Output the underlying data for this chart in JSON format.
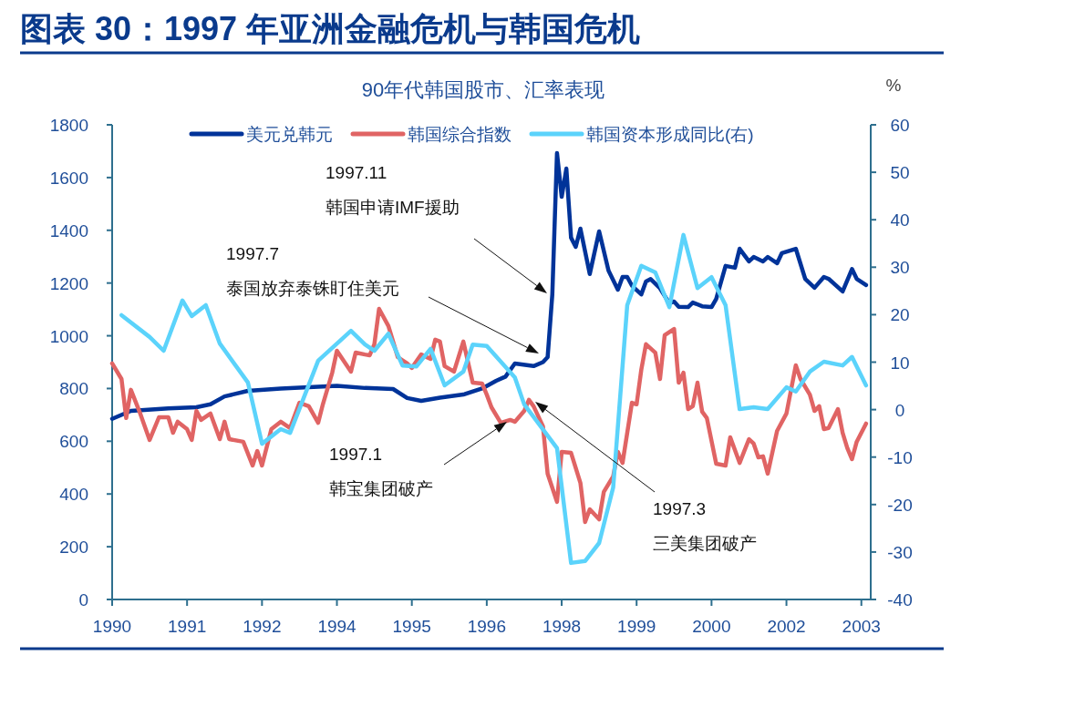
{
  "chart_data": {
    "type": "line",
    "title": "图表 30：1997 年亚洲金融危机与韩国危机",
    "subtitle": "90年代韩国股市、汇率表现",
    "y2label": "%",
    "xlim": [
      "1990-01",
      "2003-07"
    ],
    "xticks": [
      {
        "value": "1990-01",
        "label": "1990"
      },
      {
        "value": "1991-05",
        "label": "1991"
      },
      {
        "value": "1992-09",
        "label": "1992"
      },
      {
        "value": "1994-01",
        "label": "1994"
      },
      {
        "value": "1995-05",
        "label": "1995"
      },
      {
        "value": "1996-09",
        "label": "1996"
      },
      {
        "value": "1998-01",
        "label": "1998"
      },
      {
        "value": "1999-05",
        "label": "1999"
      },
      {
        "value": "2000-09",
        "label": "2000"
      },
      {
        "value": "2002-01",
        "label": "2002"
      },
      {
        "value": "2003-05",
        "label": "2003"
      }
    ],
    "ylim": [
      0,
      1800
    ],
    "yticks": [
      0,
      200,
      400,
      600,
      800,
      1000,
      1200,
      1400,
      1600,
      1800
    ],
    "y2lim": [
      -40,
      60
    ],
    "y2ticks": [
      -40,
      -30,
      -20,
      -10,
      0,
      10,
      20,
      30,
      40,
      50,
      60
    ],
    "grid": false,
    "legend": "top",
    "line_style": "solid",
    "marker": "none",
    "series": [
      {
        "name": "美元兑韩元",
        "color": "#003399",
        "x": [
          "1990-01",
          "1990-05",
          "1991-01",
          "1991-07",
          "1991-10",
          "1992-01",
          "1992-06",
          "1993-01",
          "1993-07",
          "1994-01",
          "1994-07",
          "1995-01",
          "1995-04",
          "1995-07",
          "1995-11",
          "1996-04",
          "1996-08",
          "1996-11",
          "1997-01",
          "1997-03",
          "1997-07",
          "1997-09",
          "1997-10",
          "1997-11",
          "1997-12",
          "1998-01",
          "1998-02",
          "1998-03",
          "1998-04",
          "1998-05",
          "1998-07",
          "1998-09",
          "1998-11",
          "1999-01",
          "1999-02",
          "1999-03",
          "1999-04",
          "1999-06",
          "1999-07",
          "1999-08",
          "1999-10",
          "1999-12",
          "2000-01",
          "2000-02",
          "2000-04",
          "2000-05",
          "2000-07",
          "2000-09",
          "2000-10",
          "2000-12",
          "2001-02",
          "2001-03",
          "2001-05",
          "2001-06",
          "2001-08",
          "2001-09",
          "2001-11",
          "2001-12",
          "2002-03",
          "2002-05",
          "2002-07",
          "2002-09",
          "2002-10",
          "2003-01",
          "2003-03",
          "2003-04",
          "2003-06"
        ],
        "values": [
          685,
          715,
          725,
          729,
          740,
          770,
          791,
          800,
          805,
          810,
          802,
          798,
          764,
          753,
          765,
          777,
          800,
          829,
          845,
          895,
          885,
          900,
          919,
          1157,
          1693,
          1527,
          1634,
          1372,
          1337,
          1406,
          1234,
          1396,
          1247,
          1175,
          1223,
          1223,
          1190,
          1157,
          1206,
          1215,
          1180,
          1123,
          1130,
          1110,
          1109,
          1126,
          1112,
          1109,
          1140,
          1265,
          1258,
          1330,
          1282,
          1299,
          1282,
          1299,
          1275,
          1313,
          1330,
          1216,
          1182,
          1223,
          1216,
          1168,
          1253,
          1216,
          1192
        ]
      },
      {
        "name": "韩国综合指数",
        "color": "#e06464",
        "x": [
          "1990-01",
          "1990-03",
          "1990-04",
          "1990-05",
          "1990-07",
          "1990-09",
          "1990-11",
          "1991-01",
          "1991-02",
          "1991-03",
          "1991-05",
          "1991-06",
          "1991-07",
          "1991-08",
          "1991-10",
          "1991-12",
          "1992-01",
          "1992-02",
          "1992-05",
          "1992-07",
          "1992-08",
          "1992-09",
          "1992-11",
          "1993-01",
          "1993-03",
          "1993-05",
          "1993-07",
          "1993-09",
          "1993-10",
          "1993-12",
          "1994-01",
          "1994-04",
          "1994-05",
          "1994-07",
          "1994-08",
          "1994-09",
          "1994-10",
          "1994-12",
          "1995-02",
          "1995-04",
          "1995-05",
          "1995-07",
          "1995-09",
          "1995-10",
          "1995-11",
          "1995-12",
          "1996-02",
          "1996-04",
          "1996-06",
          "1996-08",
          "1996-09",
          "1996-10",
          "1996-12",
          "1997-02",
          "1997-03",
          "1997-05",
          "1997-06",
          "1997-07",
          "1997-09",
          "1997-10",
          "1997-12",
          "1998-01",
          "1998-03",
          "1998-05",
          "1998-06",
          "1998-07",
          "1998-09",
          "1998-10",
          "1998-12",
          "1999-01",
          "1999-02",
          "1999-04",
          "1999-05",
          "1999-06",
          "1999-07",
          "1999-09",
          "1999-10",
          "1999-11",
          "2000-01",
          "2000-02",
          "2000-03",
          "2000-04",
          "2000-05",
          "2000-06",
          "2000-07",
          "2000-08",
          "2000-10",
          "2000-12",
          "2001-01",
          "2001-03",
          "2001-05",
          "2001-06",
          "2001-07",
          "2001-08",
          "2001-09",
          "2001-11",
          "2002-01",
          "2002-03",
          "2002-04",
          "2002-06",
          "2002-07",
          "2002-08",
          "2002-09",
          "2002-10",
          "2002-12",
          "2003-01",
          "2003-02",
          "2003-03",
          "2003-04",
          "2003-06"
        ],
        "values": [
          895,
          836,
          688,
          795,
          705,
          605,
          691,
          691,
          632,
          674,
          646,
          605,
          715,
          681,
          705,
          608,
          674,
          608,
          598,
          508,
          563,
          508,
          646,
          674,
          650,
          746,
          733,
          670,
          740,
          860,
          943,
          864,
          936,
          929,
          926,
          968,
          1102,
          1037,
          919,
          895,
          878,
          929,
          912,
          985,
          978,
          885,
          864,
          978,
          822,
          819,
          777,
          729,
          670,
          681,
          674,
          715,
          757,
          733,
          657,
          477,
          370,
          560,
          556,
          442,
          294,
          342,
          304,
          408,
          467,
          560,
          518,
          746,
          740,
          871,
          968,
          936,
          836,
          1002,
          1026,
          822,
          860,
          722,
          733,
          822,
          712,
          688,
          515,
          508,
          615,
          518,
          608,
          591,
          539,
          543,
          477,
          639,
          705,
          888,
          836,
          777,
          715,
          733,
          646,
          650,
          722,
          632,
          574,
          532,
          598,
          667
        ]
      },
      {
        "name": "韩国资本形成同比(右)",
        "color": "#5bd3fb",
        "axis": "y2",
        "x": [
          "1990-03",
          "1990-09",
          "1990-12",
          "1991-04",
          "1991-06",
          "1991-09",
          "1991-12",
          "1992-06",
          "1992-09",
          "1993-01",
          "1993-03",
          "1993-09",
          "1994-04",
          "1994-07",
          "1994-09",
          "1994-12",
          "1995-03",
          "1995-06",
          "1995-09",
          "1995-12",
          "1996-04",
          "1996-06",
          "1996-09",
          "1997-03",
          "1997-05",
          "1997-12",
          "1998-03",
          "1998-06",
          "1998-09",
          "1998-12",
          "1999-03",
          "1999-06",
          "1999-09",
          "1999-12",
          "2000-03",
          "2000-06",
          "2000-09",
          "2000-12",
          "2001-03",
          "2001-06",
          "2001-09",
          "2002-01",
          "2002-03",
          "2002-06",
          "2002-09",
          "2003-01",
          "2003-03",
          "2003-06"
        ],
        "values": [
          19.9,
          15.3,
          12.4,
          23.0,
          19.7,
          22.0,
          13.9,
          5.7,
          -7.2,
          -4.1,
          -4.9,
          10.3,
          16.6,
          13.7,
          12.4,
          16.0,
          9.3,
          9.1,
          12.8,
          5.1,
          8.0,
          13.7,
          13.4,
          6.8,
          1.1,
          -8.1,
          -32.3,
          -31.9,
          -28.1,
          -16.4,
          22.0,
          30.3,
          28.9,
          21.6,
          36.8,
          25.6,
          27.9,
          22.0,
          0.1,
          0.5,
          0.1,
          4.7,
          3.8,
          8.0,
          10.1,
          9.3,
          11.1,
          5.1
        ]
      }
    ],
    "annotations": [
      "1997.11\n韩国申请IMF援助",
      "1997.7\n泰国放弃泰铢盯住美元",
      "1997.1\n韩宝集团破产",
      "1997.3\n三美集团破产"
    ]
  }
}
